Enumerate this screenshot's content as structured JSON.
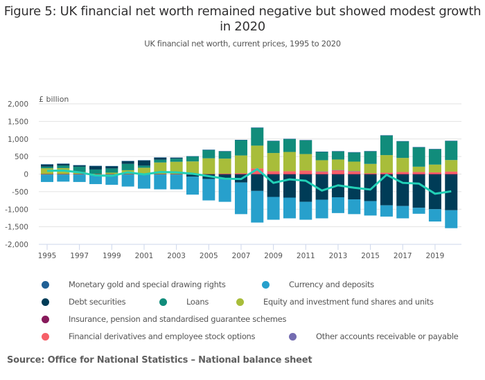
{
  "title": "Figure 5: UK financial net worth remained negative but showed modest growth in 2020",
  "subtitle": "UK financial net worth, current prices, 1995 to 2020",
  "source": "Source: Office for National Statistics – National balance sheet",
  "chart_data": {
    "type": "bar",
    "stacked": true,
    "title": "Figure 5: UK financial net worth remained negative but showed modest growth in 2020",
    "subtitle": "UK financial net worth, current prices, 1995 to 2020",
    "ylabel": "£ billion",
    "xlabel": "",
    "ylim": [
      -2000,
      2000
    ],
    "yticks": [
      2000,
      1500,
      1000,
      500,
      0,
      -500,
      -1000,
      -1500,
      -2000
    ],
    "ytick_labels": [
      "2,000",
      "1,500",
      "1,000",
      "500",
      "0",
      "-500",
      "-1,000",
      "-1,500",
      "-2,000"
    ],
    "xtick_labels": [
      "1995",
      "1997",
      "1999",
      "2001",
      "2003",
      "2005",
      "2007",
      "2009",
      "2011",
      "2013",
      "2015",
      "2017",
      "2019"
    ],
    "grid": true,
    "legend_position": "bottom",
    "categories": [
      "1995",
      "1996",
      "1997",
      "1998",
      "1999",
      "2000",
      "2001",
      "2002",
      "2003",
      "2004",
      "2005",
      "2006",
      "2007",
      "2008",
      "2009",
      "2010",
      "2011",
      "2012",
      "2013",
      "2014",
      "2015",
      "2016",
      "2017",
      "2018",
      "2019",
      "2020"
    ],
    "series": [
      {
        "name": "Monetary gold and special drawing rights",
        "color": "#206095",
        "values": [
          5,
          10,
          5,
          5,
          5,
          5,
          5,
          5,
          5,
          5,
          5,
          5,
          5,
          5,
          10,
          5,
          10,
          5,
          10,
          10,
          5,
          5,
          10,
          10,
          5,
          10
        ]
      },
      {
        "name": "Currency and deposits",
        "color": "#27a0cc",
        "values": [
          -210,
          -200,
          -210,
          -270,
          -290,
          -340,
          -400,
          -420,
          -420,
          -510,
          -610,
          -670,
          -900,
          -900,
          -650,
          -590,
          -510,
          -530,
          -450,
          -420,
          -410,
          -320,
          -350,
          -170,
          -350,
          -510
        ]
      },
      {
        "name": "Debt securities",
        "color": "#003c57",
        "values": [
          65,
          45,
          40,
          100,
          65,
          80,
          150,
          60,
          25,
          -60,
          -130,
          -110,
          -230,
          -470,
          -640,
          -660,
          -780,
          -720,
          -650,
          -710,
          -760,
          -880,
          -900,
          -950,
          -990,
          -1020
        ]
      },
      {
        "name": "Loans",
        "color": "#118c7b",
        "values": [
          45,
          75,
          150,
          120,
          120,
          180,
          60,
          80,
          90,
          145,
          240,
          210,
          440,
          510,
          340,
          370,
          390,
          240,
          230,
          260,
          360,
          560,
          470,
          550,
          440,
          540
        ]
      },
      {
        "name": "Equity and investment fund shares and units",
        "color": "#a8bd3a",
        "values": [
          165,
          170,
          60,
          10,
          40,
          110,
          180,
          330,
          350,
          360,
          450,
          430,
          510,
          650,
          520,
          550,
          470,
          320,
          300,
          270,
          270,
          500,
          400,
          150,
          220,
          330
        ]
      },
      {
        "name": "Insurance, pension and standardised guarantee schemes",
        "color": "#871a5b",
        "values": [
          -15,
          -15,
          -15,
          -15,
          -15,
          -15,
          -15,
          -15,
          -15,
          -15,
          -10,
          -10,
          -10,
          -10,
          -10,
          -10,
          -10,
          -10,
          -10,
          -10,
          -10,
          -10,
          -10,
          -10,
          -10,
          -10
        ]
      },
      {
        "name": "Financial derivatives and employee stock options",
        "color": "#f66068",
        "values": [
          0,
          0,
          0,
          0,
          0,
          0,
          0,
          0,
          0,
          0,
          0,
          10,
          20,
          160,
          80,
          80,
          100,
          70,
          110,
          80,
          20,
          40,
          60,
          60,
          50,
          70
        ]
      },
      {
        "name": "Other accounts receivable or payable",
        "color": "#746cb1",
        "values": [
          0,
          0,
          0,
          0,
          0,
          0,
          0,
          0,
          0,
          0,
          0,
          0,
          0,
          0,
          0,
          0,
          0,
          5,
          5,
          5,
          0,
          0,
          0,
          0,
          0,
          0
        ]
      }
    ],
    "line_series": {
      "name": "Net worth",
      "color": "#22d0b6",
      "values": [
        90,
        100,
        50,
        -40,
        -50,
        50,
        -10,
        60,
        50,
        10,
        -60,
        -130,
        -140,
        140,
        -250,
        -150,
        -190,
        -470,
        -320,
        -390,
        -440,
        -20,
        -250,
        -270,
        -560,
        -490
      ]
    }
  }
}
